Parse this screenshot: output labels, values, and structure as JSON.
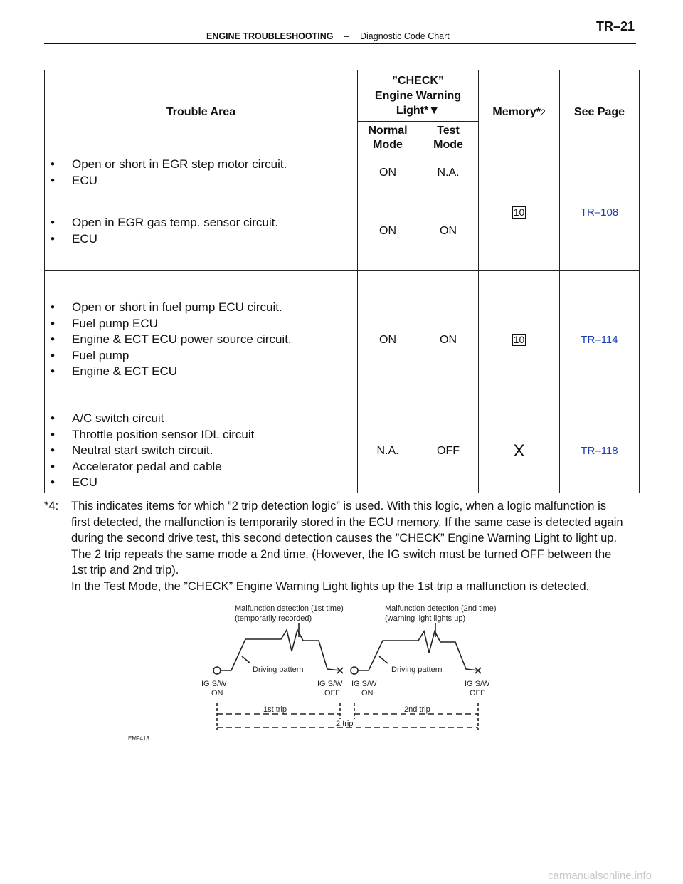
{
  "header": {
    "section": "ENGINE TROUBLESHOOTING",
    "separator": "–",
    "subtitle": "Diagnostic Code Chart",
    "page": "TR–21"
  },
  "table": {
    "columns": {
      "trouble_area": "Trouble Area",
      "check_light": [
        "”CHECK”",
        "Engine Warning",
        "Light*"
      ],
      "check_light_symbol": "▼",
      "normal_mode": [
        "Normal",
        "Mode"
      ],
      "test_mode": [
        "Test",
        "Mode"
      ],
      "memory": "Memory*",
      "memory_note": "2",
      "see_page": "See Page"
    },
    "rows": [
      {
        "items": [
          "Open or short in EGR step motor circuit.",
          "ECU"
        ],
        "normal": "ON",
        "test": "N.A."
      },
      {
        "items": [
          "Open in EGR gas temp. sensor circuit.",
          "ECU"
        ],
        "normal": "ON",
        "test": "ON"
      },
      {
        "items": [
          "Open or short in fuel pump ECU circuit.",
          "Fuel pump ECU",
          "Engine & ECT ECU power source circuit.",
          "Fuel pump",
          "Engine & ECT ECU"
        ],
        "normal": "ON",
        "test": "ON"
      },
      {
        "items": [
          "A/C switch circuit",
          "Throttle position sensor IDL circuit",
          "Neutral start switch circuit.",
          "Accelerator pedal and cable",
          "ECU"
        ],
        "normal": "N.A.",
        "test": "OFF"
      }
    ],
    "groups": [
      {
        "memory": "10",
        "see_page": "TR–108"
      },
      {
        "memory": "10",
        "see_page": "TR–114"
      },
      {
        "memory": "X",
        "see_page": "TR–118"
      }
    ]
  },
  "note": {
    "label": "*4:",
    "lines": [
      "This indicates items for which ”2 trip detection logic” is used. With this logic, when a logic malfunction is",
      "first detected, the malfunction is temporarily stored in the ECU memory. If the same case is detected again",
      "during the second drive test, this second detection causes the ”CHECK” Engine Warning Light to light up.",
      "The 2 trip repeats the same mode a 2nd time. (However, the IG switch must be turned OFF between the",
      "1st trip and 2nd trip).",
      "In the Test Mode, the ”CHECK” Engine Warning Light lights up the 1st trip a malfunction is detected."
    ]
  },
  "diagram": {
    "detection_1": [
      "Malfunction detection (1st time)",
      "(temporarily recorded)"
    ],
    "detection_2": [
      "Malfunction detection (2nd time)",
      "(warning light lights up)"
    ],
    "pattern_1": "Driving pattern",
    "pattern_2": "Driving pattern",
    "switch_labels": [
      [
        "IG S/W",
        "ON"
      ],
      [
        "IG S/W",
        "OFF"
      ],
      [
        "IG S/W",
        "ON"
      ],
      [
        "IG S/W",
        "OFF"
      ]
    ],
    "trip_1": "1st trip",
    "trip_2": "2nd trip",
    "trip_total": "2 trip",
    "figure_id": "EM9413"
  },
  "footer": {
    "watermark": "carmanualsonline.info"
  }
}
